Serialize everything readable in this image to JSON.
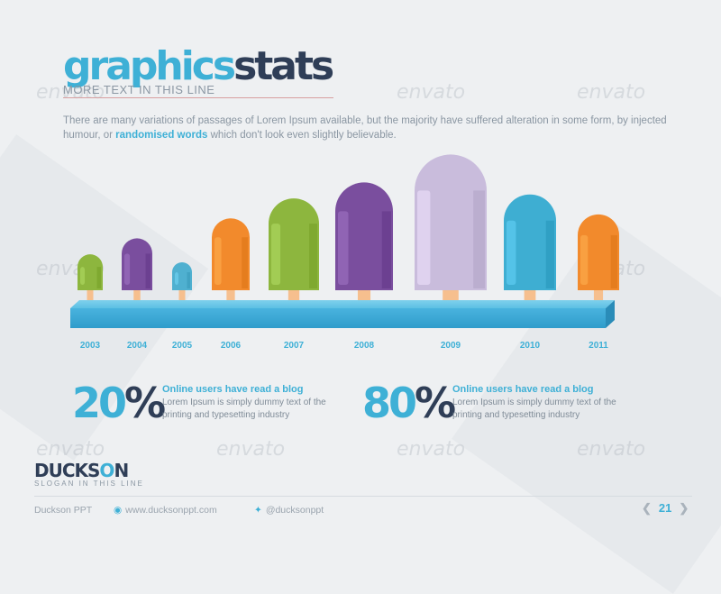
{
  "header": {
    "title_part1": "graphics",
    "title_part2": "stats",
    "subtitle": "MORE TEXT IN THIS LINE"
  },
  "intro": {
    "text_before": "There are many variations of passages of Lorem Ipsum available, but the majority have suffered alteration in some form, by injected humour, or ",
    "highlight": "randomised words",
    "text_after": " which don't look even slightly believable."
  },
  "chart_data": {
    "type": "bar",
    "categories": [
      "2003",
      "2004",
      "2005",
      "2006",
      "2007",
      "2008",
      "2009",
      "2010",
      "2011"
    ],
    "values": [
      45,
      65,
      35,
      90,
      115,
      135,
      170,
      120,
      95
    ],
    "colors": [
      "#8db63e",
      "#7a4e9e",
      "#4fb0d0",
      "#f28a2c",
      "#8db63e",
      "#7a4e9e",
      "#c9bcdc",
      "#3eaed2",
      "#f28a2c"
    ],
    "ylim": [
      0,
      175
    ],
    "grid": false,
    "legend": "none",
    "title": "",
    "xlabel": "",
    "ylabel": ""
  },
  "stats": [
    {
      "value": "20",
      "sign": "%",
      "heading": "Online users have read a blog",
      "body": "Lorem Ipsum is simply dummy text of the printing and typesetting industry"
    },
    {
      "value": "80",
      "sign": "%",
      "heading": "Online users have read a blog",
      "body": "Lorem Ipsum is simply dummy text of the printing and typesetting industry"
    }
  ],
  "brand": {
    "name_a": "DUCKS",
    "name_o": "O",
    "name_b": "N",
    "slogan": "SLOGAN IN THIS LINE"
  },
  "watermark": "envato",
  "footer": {
    "company": "Duckson PPT",
    "website": "www.ducksonppt.com",
    "twitter": "@ducksonppt",
    "globe_icon": "globe-icon",
    "twitter_icon": "twitter-bird-icon",
    "page_number": "21"
  }
}
